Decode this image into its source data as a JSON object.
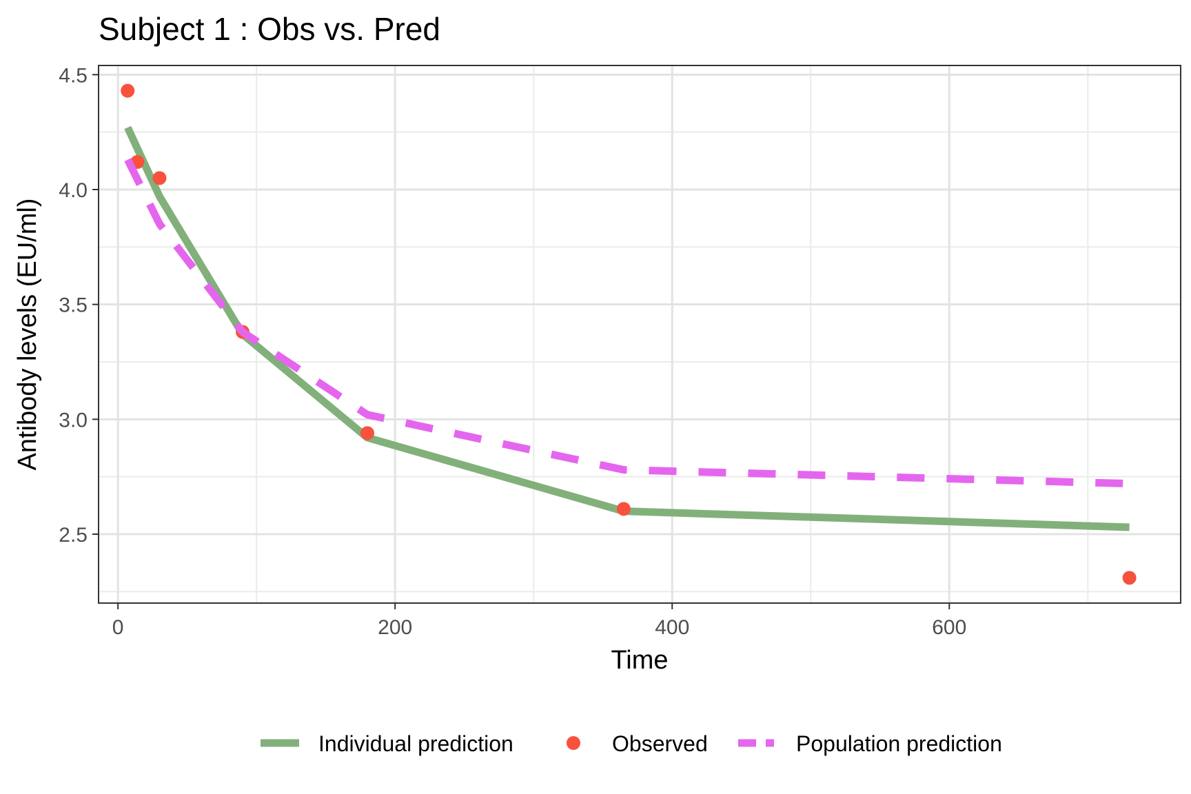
{
  "chart_data": {
    "type": "line",
    "title": "Subject 1 : Obs vs. Pred",
    "xlabel": "Time",
    "ylabel": "Antibody levels (EU/ml)",
    "xlim": [
      -14,
      767
    ],
    "ylim": [
      2.2,
      4.54
    ],
    "x_ticks": [
      0,
      200,
      400,
      600
    ],
    "x_tick_labels": [
      "0",
      "200",
      "400",
      "600"
    ],
    "y_ticks": [
      2.5,
      3.0,
      3.5,
      4.0,
      4.5
    ],
    "y_tick_labels": [
      "2.5",
      "3.0",
      "3.5",
      "4.0",
      "4.5"
    ],
    "grid": true,
    "legend_position": "bottom",
    "series": [
      {
        "name": "Individual prediction",
        "kind": "line",
        "color": "#82b07a",
        "x": [
          7,
          30,
          90,
          180,
          365,
          730
        ],
        "y": [
          4.27,
          3.97,
          3.37,
          2.92,
          2.6,
          2.53
        ]
      },
      {
        "name": "Observed",
        "kind": "points",
        "color": "#f8513d",
        "x": [
          7,
          14,
          30,
          90,
          180,
          365,
          730
        ],
        "y": [
          4.43,
          4.12,
          4.05,
          3.38,
          2.94,
          2.61,
          2.31
        ]
      },
      {
        "name": "Population prediction",
        "kind": "dashed",
        "color": "#e566ee",
        "x": [
          7,
          30,
          90,
          180,
          365,
          730
        ],
        "y": [
          4.13,
          3.85,
          3.38,
          3.02,
          2.78,
          2.72
        ]
      }
    ]
  }
}
